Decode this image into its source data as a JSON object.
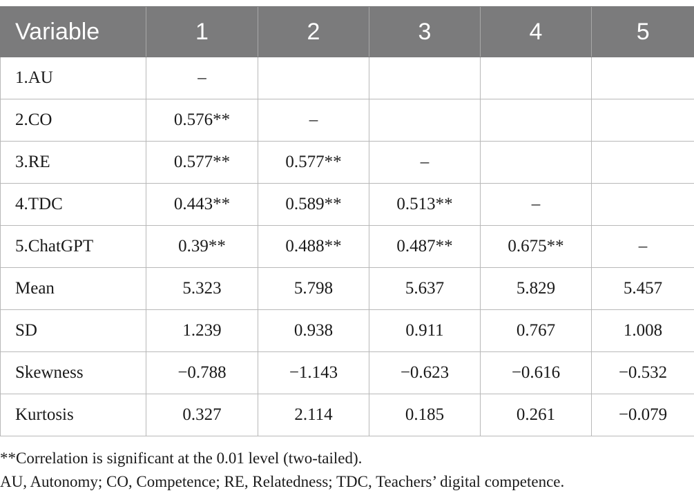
{
  "table": {
    "headers": [
      "Variable",
      "1",
      "2",
      "3",
      "4",
      "5"
    ],
    "rows": [
      [
        "1.AU",
        "–",
        "",
        "",
        "",
        ""
      ],
      [
        "2.CO",
        "0.576**",
        "–",
        "",
        "",
        ""
      ],
      [
        "3.RE",
        "0.577**",
        "0.577**",
        "–",
        "",
        ""
      ],
      [
        "4.TDC",
        "0.443**",
        "0.589**",
        "0.513**",
        "–",
        ""
      ],
      [
        "5.ChatGPT",
        "0.39**",
        "0.488**",
        "0.487**",
        "0.675**",
        "–"
      ],
      [
        "Mean",
        "5.323",
        "5.798",
        "5.637",
        "5.829",
        "5.457"
      ],
      [
        "SD",
        "1.239",
        "0.938",
        "0.911",
        "0.767",
        "1.008"
      ],
      [
        "Skewness",
        "−0.788",
        "−1.143",
        "−0.623",
        "−0.616",
        "−0.532"
      ],
      [
        "Kurtosis",
        "0.327",
        "2.114",
        "0.185",
        "0.261",
        "−0.079"
      ]
    ]
  },
  "notes": {
    "significance": "**Correlation is significant at the 0.01 level (two-tailed).",
    "abbreviations": "AU, Autonomy; CO, Competence; RE, Relatedness; TDC, Teachers’ digital competence."
  },
  "colors": {
    "header_bg": "#7b7b7c",
    "header_text": "#ffffff",
    "grid": "#b8b8b8"
  }
}
